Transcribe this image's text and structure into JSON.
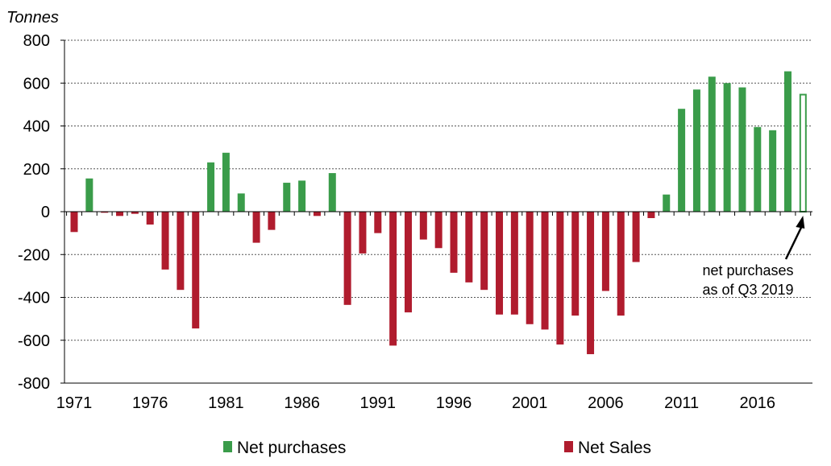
{
  "chart_data": {
    "type": "bar",
    "ylabel": "Tonnes",
    "ylim": [
      -800,
      800
    ],
    "yticks": [
      800,
      600,
      400,
      200,
      0,
      -200,
      -400,
      -600,
      -800
    ],
    "ytick_labels": [
      "800",
      "600",
      "400",
      "200",
      "0",
      "-200",
      "-400",
      "-600",
      "-800"
    ],
    "xtick_labels": [
      "1971",
      "1976",
      "1981",
      "1986",
      "1991",
      "1996",
      "2001",
      "2006",
      "2011",
      "2016"
    ],
    "grid": true,
    "legend": {
      "placement": "bottom",
      "items": [
        {
          "label": "Net purchases",
          "color": "#3a9c4a"
        },
        {
          "label": "Net Sales",
          "color": "#b01c2e"
        }
      ]
    },
    "annotation": {
      "lines": [
        "net purchases",
        "as of Q3 2019"
      ],
      "points_to": 2019
    },
    "colors": {
      "positive": "#3a9c4a",
      "negative": "#b01c2e",
      "grid": "#555555"
    },
    "categories": [
      "1971",
      "1972",
      "1973",
      "1974",
      "1975",
      "1976",
      "1977",
      "1978",
      "1979",
      "1980",
      "1981",
      "1982",
      "1983",
      "1984",
      "1985",
      "1986",
      "1987",
      "1988",
      "1989",
      "1990",
      "1991",
      "1992",
      "1993",
      "1994",
      "1995",
      "1996",
      "1997",
      "1998",
      "1999",
      "2000",
      "2001",
      "2002",
      "2003",
      "2004",
      "2005",
      "2006",
      "2007",
      "2008",
      "2009",
      "2010",
      "2011",
      "2012",
      "2013",
      "2014",
      "2015",
      "2016",
      "2017",
      "2018",
      "2019"
    ],
    "values": [
      -95,
      155,
      -5,
      -20,
      -10,
      -60,
      -270,
      -365,
      -545,
      230,
      275,
      85,
      -145,
      -85,
      135,
      145,
      -20,
      180,
      -435,
      -195,
      -100,
      -625,
      -470,
      -130,
      -170,
      -285,
      -330,
      -365,
      -480,
      -480,
      -525,
      -550,
      -620,
      -485,
      -665,
      -370,
      -485,
      -235,
      -30,
      80,
      480,
      570,
      630,
      600,
      580,
      395,
      380,
      655,
      550
    ],
    "outlined": [
      "2019"
    ]
  }
}
